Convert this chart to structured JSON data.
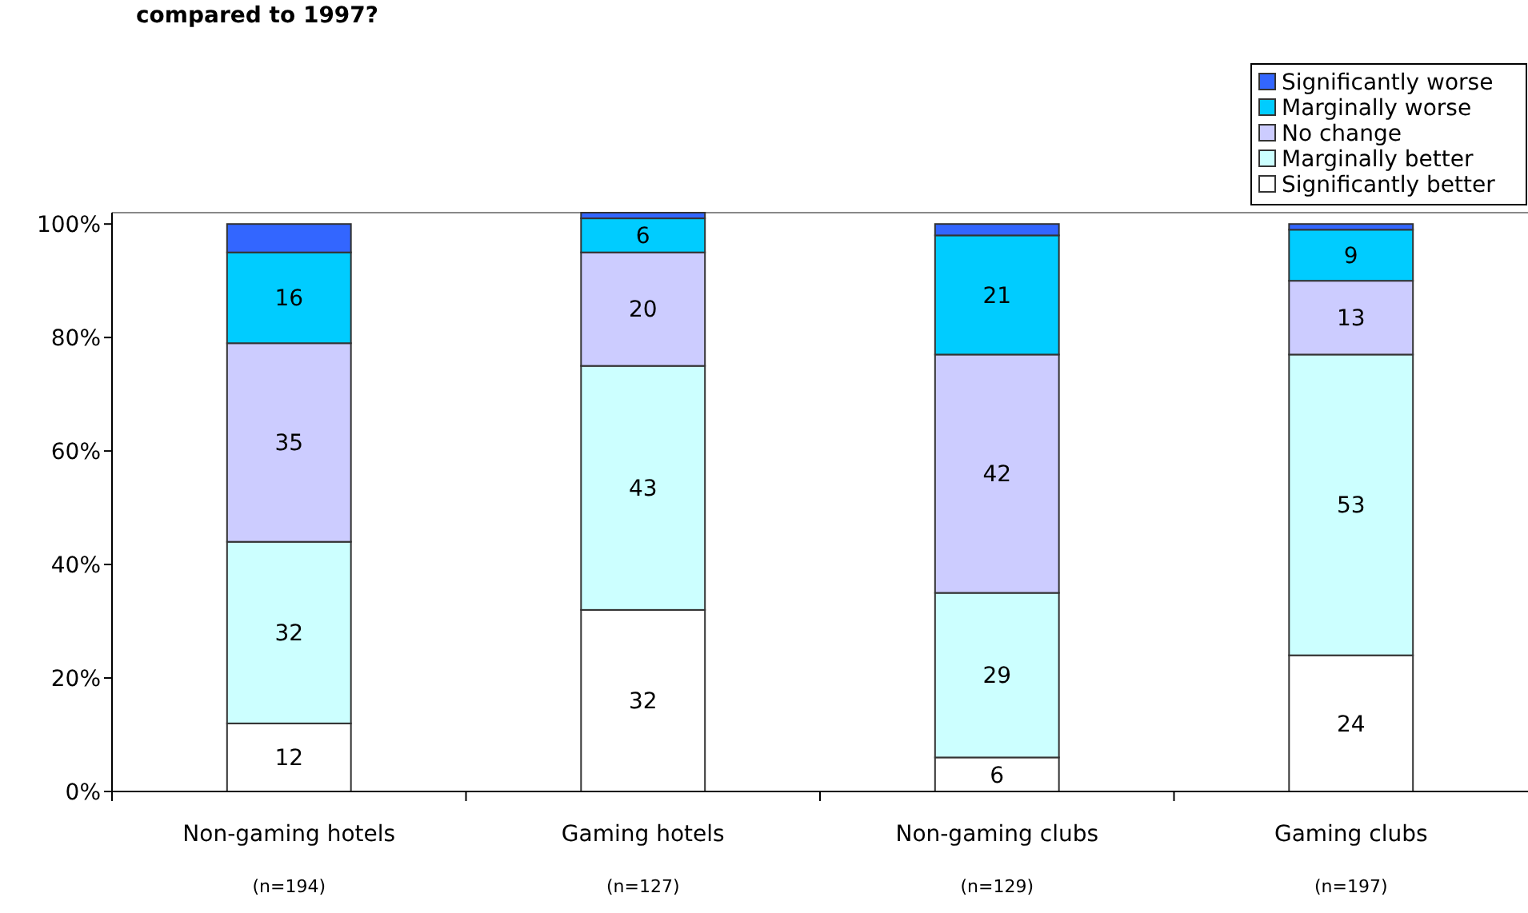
{
  "chart_data": {
    "type": "bar",
    "stacked": true,
    "title": "compared to 1997?",
    "categories": [
      "Non-gaming hotels\n(n=194)",
      "Gaming hotels\n(n=127)",
      "Non-gaming clubs\n(n=129)",
      "Gaming clubs\n(n=197)"
    ],
    "series": [
      {
        "name": "Significantly better",
        "color": "#ffffff",
        "values": [
          12,
          32,
          6,
          24
        ],
        "value_labels": [
          "12",
          "32",
          "6",
          "24"
        ]
      },
      {
        "name": "Marginally better",
        "color": "#ccffff",
        "values": [
          32,
          43,
          29,
          53
        ],
        "value_labels": [
          "32",
          "43",
          "29",
          "53"
        ]
      },
      {
        "name": "No change",
        "color": "#ccccff",
        "values": [
          35,
          20,
          42,
          13
        ],
        "value_labels": [
          "35",
          "20",
          "42",
          "13"
        ]
      },
      {
        "name": "Marginally worse",
        "color": "#00ccff",
        "values": [
          16,
          6,
          21,
          9
        ],
        "value_labels": [
          "16",
          "6",
          "21",
          "9"
        ]
      },
      {
        "name": "Significantly worse",
        "color": "#3366ff",
        "values": [
          5,
          1,
          2,
          1
        ],
        "value_labels": [
          null,
          null,
          null,
          null
        ]
      }
    ],
    "ylim": [
      0,
      102
    ],
    "yticks": [
      {
        "value": 0,
        "label": "0%"
      },
      {
        "value": 20,
        "label": "20%"
      },
      {
        "value": 40,
        "label": "40%"
      },
      {
        "value": 60,
        "label": "60%"
      },
      {
        "value": 80,
        "label": "80%"
      },
      {
        "value": 100,
        "label": "100%"
      }
    ],
    "legend": "top right",
    "grid": false
  }
}
